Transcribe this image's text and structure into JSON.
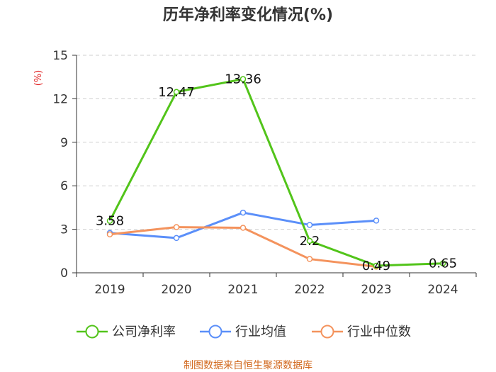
{
  "chart_data": {
    "type": "line",
    "title": "历年净利率变化情况(%)",
    "ylabel": "(%)",
    "xlabel": "",
    "categories": [
      "2019",
      "2020",
      "2021",
      "2022",
      "2023",
      "2024"
    ],
    "ylim": [
      0,
      15
    ],
    "yticks": [
      0,
      3,
      6,
      9,
      12,
      15
    ],
    "grid": true,
    "legend_position": "bottom",
    "series": [
      {
        "name": "公司净利率",
        "color": "#52c41a",
        "values": [
          3.58,
          12.47,
          13.36,
          2.2,
          0.49,
          0.65
        ],
        "labels": [
          "3.58",
          "12.47",
          "13.36",
          "2.2",
          "0.49",
          "0.65"
        ]
      },
      {
        "name": "行业均值",
        "color": "#5b8ff9",
        "values": [
          2.75,
          2.4,
          4.15,
          3.3,
          3.6,
          null
        ]
      },
      {
        "name": "行业中位数",
        "color": "#f4935d",
        "values": [
          2.65,
          3.15,
          3.1,
          0.95,
          0.42,
          null
        ]
      }
    ]
  },
  "source_text": "制图数据来自恒生聚源数据库"
}
